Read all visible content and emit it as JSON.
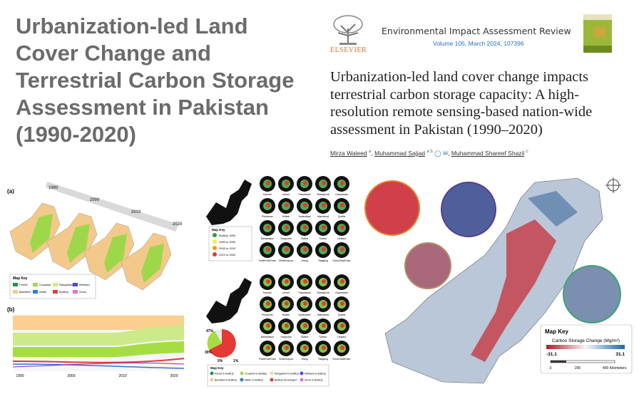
{
  "header": {
    "title": "Urbanization-led Land Cover Change and Terrestrial Carbon Storage Assessment in Pakistan (1990-2020)",
    "journal": "Environmental Impact Assessment Review",
    "volume": "Volume 105, March 2024, 107396",
    "publisher": "ELSEVIER"
  },
  "paper": {
    "title": "Urbanization-led land cover change impacts terrestrial carbon storage capacity: A high-resolution remote sensing-based nation-wide assessment in Pakistan (1990–2020)",
    "authors": [
      {
        "name": "Mirza Waleed",
        "affil": "a"
      },
      {
        "name": "Muhammad Sajjad",
        "affil": "a b"
      },
      {
        "name": "Muhammad Shareef Shazil",
        "affil": "c"
      }
    ]
  },
  "figure_left": {
    "panel_a": "(a)",
    "panel_b": "(b)",
    "years": [
      "1990",
      "2000",
      "2010",
      "2020"
    ],
    "map_key": "Map Key",
    "classes": [
      "Forest",
      "Cropland",
      "Rangeland",
      "Wetland",
      "Barefield",
      "Water",
      "BuiltUp",
      "Snow"
    ]
  },
  "figure_middle": {
    "map_key": "Map Key",
    "growth_key": [
      "BuiltUp 1990",
      "1990 to 2000",
      "2000 to 2010",
      "2010 to 2020"
    ],
    "cities": [
      "Karachi",
      "Lahore",
      "Faisalabad",
      "Rawalpindi",
      "Gujranwala",
      "Peshawar",
      "Multan",
      "Hyderabad",
      "Islamabad",
      "Quetta",
      "Bahawalpur",
      "Sargodha",
      "Sialkot",
      "Sukkur",
      "Larkana",
      "RahimYarKhan",
      "Sheikhupura",
      "Jhang",
      "Talagang",
      "DeraGhaziKhan"
    ],
    "conversion_key": [
      "Forest to BuiltUp",
      "Cropland to BuiltUp",
      "Rangeland to BuiltUp",
      "Wetland to BuiltUp",
      "Barefield to BuiltUp",
      "Water to BuiltUp",
      "BuiltUp Unchanged",
      "Snow to BuiltUp"
    ],
    "pie_labels": [
      "47%",
      "39%",
      "5%",
      "1%"
    ]
  },
  "figure_right": {
    "map_key": "Map Key",
    "legend_title": "Carbon Storage Change (Mg/m²)",
    "min_label": "-31.1",
    "max_label": "31.1",
    "scale": [
      "0",
      "200",
      "400 Kilometers"
    ]
  }
}
